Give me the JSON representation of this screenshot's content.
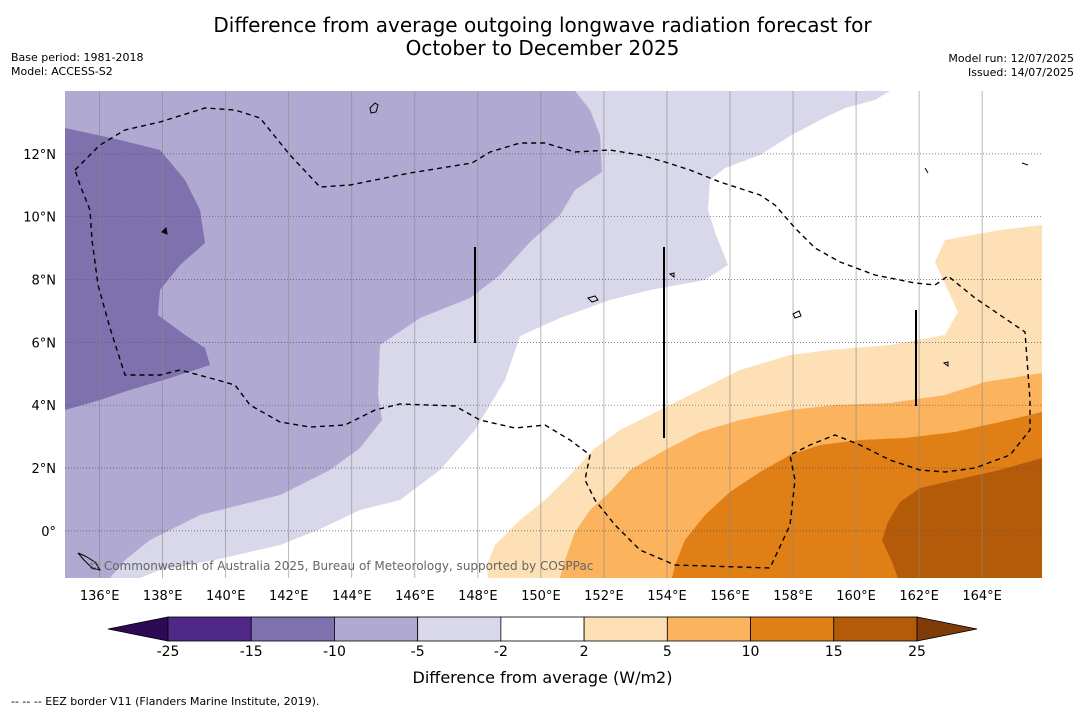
{
  "title_line1": "Difference from average outgoing longwave radiation forecast for",
  "title_line2": "October to December 2025",
  "base_period": "Base period: 1981-2018",
  "model": "Model: ACCESS-S2",
  "model_run": "Model run: 12/07/2025",
  "issued": "Issued: 14/07/2025",
  "copyright": "© Commonwealth of Australia 2025, Bureau of Meteorology, supported by COSPPac",
  "footnote": "--  --  -- EEZ border V11 (Flanders Marine Institute, 2019).",
  "map": {
    "lon_ticks": [
      "136°E",
      "138°E",
      "140°E",
      "142°E",
      "144°E",
      "146°E",
      "148°E",
      "150°E",
      "152°E",
      "154°E",
      "156°E",
      "158°E",
      "160°E",
      "162°E",
      "164°E"
    ],
    "lon_values": [
      136,
      138,
      140,
      142,
      144,
      146,
      148,
      150,
      152,
      154,
      156,
      158,
      160,
      162,
      164
    ],
    "lat_ticks": [
      "12°N",
      "10°N",
      "8°N",
      "6°N",
      "4°N",
      "2°N",
      "0°"
    ],
    "lat_values": [
      12,
      10,
      8,
      6,
      4,
      2,
      0
    ],
    "lon_range": [
      134.9,
      165.9
    ],
    "lat_range": [
      -1.5,
      14.0
    ]
  },
  "colorbar": {
    "title": "Difference from average (W/m2)",
    "labels": [
      "-25",
      "-15",
      "-10",
      "-5",
      "-2",
      "2",
      "5",
      "10",
      "15",
      "25"
    ],
    "colors": [
      "#4f2888",
      "#7e71ad",
      "#b0a9d2",
      "#d8d8ea",
      "#ffffff",
      "#fde0b5",
      "#fbb35e",
      "#e07f16",
      "#b35b08"
    ],
    "extend_low": "#2e0a56",
    "extend_high": "#7f3b08"
  }
}
